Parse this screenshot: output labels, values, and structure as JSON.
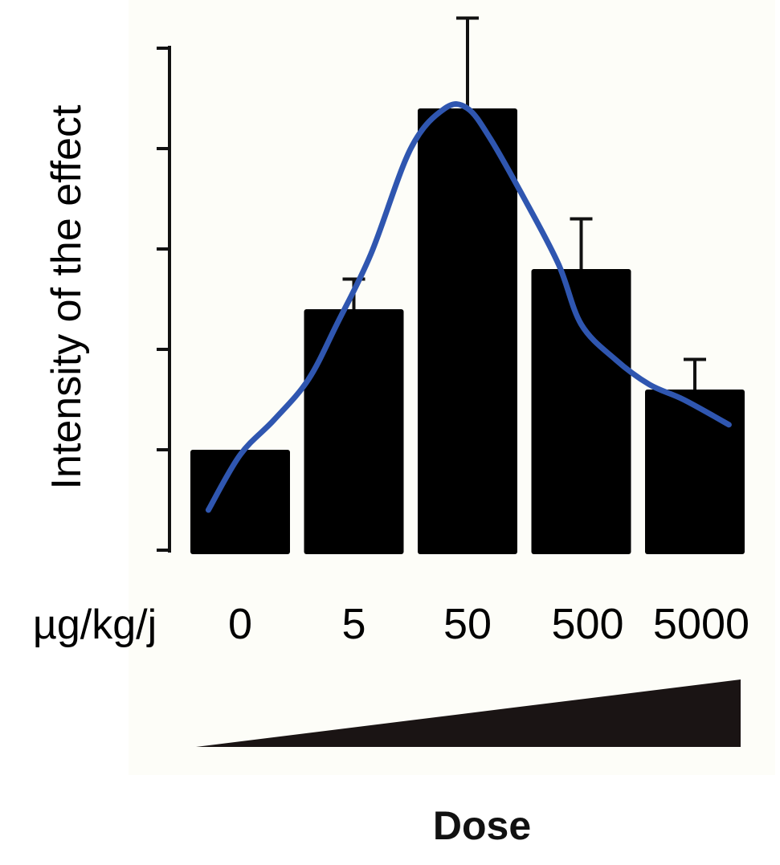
{
  "chart_data": {
    "type": "bar",
    "title": "",
    "ylabel": "Intensity of the effect",
    "xlabel": "Dose",
    "unit_label": "µg/kg/j",
    "categories": [
      "0",
      "5",
      "50",
      "500",
      "5000"
    ],
    "values": [
      1.0,
      2.4,
      4.4,
      2.8,
      1.6
    ],
    "error_upper": [
      1.0,
      2.7,
      5.3,
      3.3,
      1.9
    ],
    "ylim": [
      -0.04,
      5.0
    ],
    "y_ticks": [
      0,
      1,
      2,
      3,
      4,
      5
    ],
    "y_tick_labels_shown": false,
    "grid": false,
    "legend": "none",
    "fit_curve": {
      "type": "line",
      "x": [
        -0.28,
        0.0,
        0.3,
        0.6,
        0.85,
        1.15,
        1.5,
        1.8,
        2.0,
        2.2,
        2.5,
        2.8,
        3.0,
        3.3,
        3.6,
        3.9,
        4.3
      ],
      "y": [
        0.4,
        0.95,
        1.3,
        1.7,
        2.25,
        2.95,
        4.0,
        4.4,
        4.4,
        4.1,
        3.5,
        2.85,
        2.25,
        1.9,
        1.65,
        1.5,
        1.25
      ]
    },
    "colors": {
      "bar": "#000000",
      "curve": "#2f56b0",
      "axis": "#111111",
      "wedge": "#1a1414",
      "panel_bg": "#fdfdf8"
    }
  }
}
